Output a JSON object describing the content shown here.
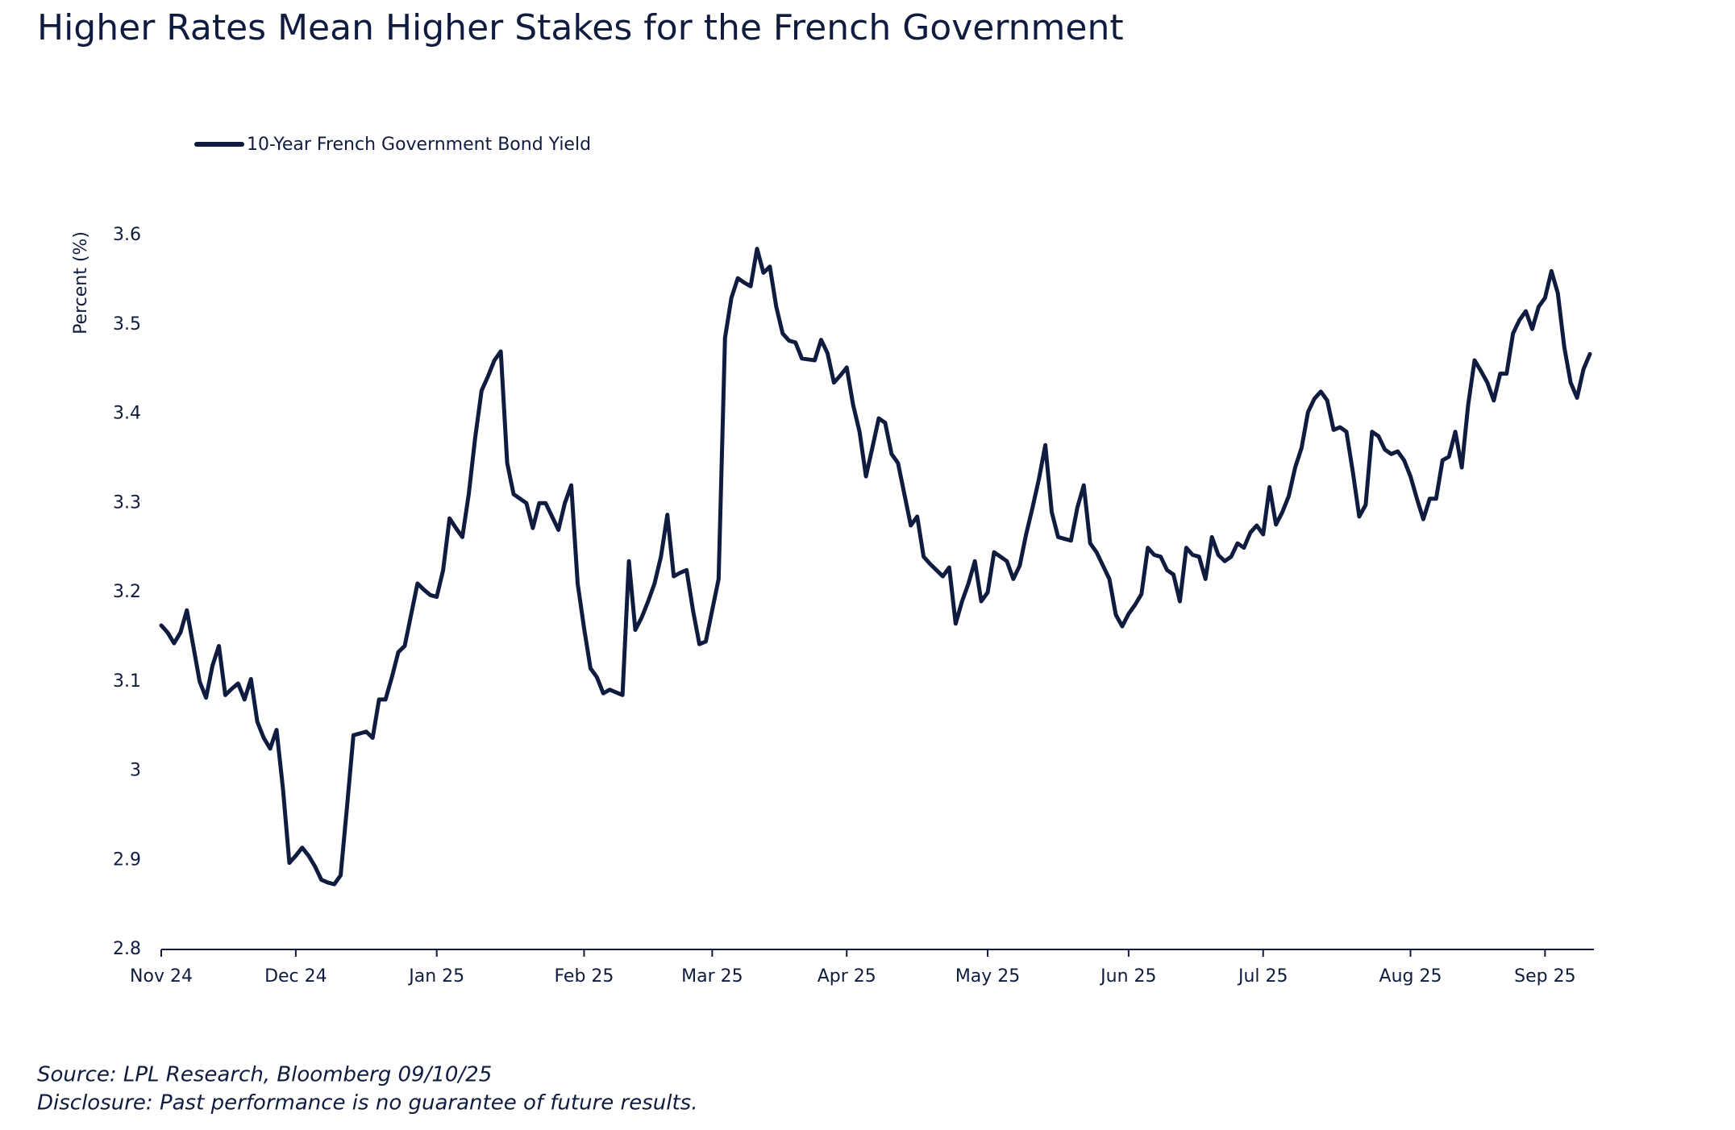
{
  "chart_data": {
    "type": "line",
    "title": "Higher Rates Mean Higher Stakes for the French Government",
    "y_label": "Percent (%)",
    "footnotes": [
      "Source: LPL Research, Bloomberg 09/10/25",
      "Disclosure: Past performance is no guarantee of future results."
    ],
    "ylim": [
      2.8,
      3.6
    ],
    "yticks": [
      2.8,
      2.9,
      3,
      3.1,
      3.2,
      3.3,
      3.4,
      3.5,
      3.6
    ],
    "grid": false,
    "legend": "top-left",
    "categories": [
      "Nov 24",
      null,
      null,
      null,
      null,
      null,
      null,
      null,
      null,
      null,
      null,
      null,
      null,
      null,
      null,
      null,
      null,
      null,
      null,
      null,
      null,
      "Dec 24",
      null,
      null,
      null,
      null,
      null,
      null,
      null,
      null,
      null,
      null,
      null,
      null,
      null,
      null,
      null,
      null,
      null,
      null,
      null,
      null,
      null,
      "Jan 25",
      null,
      null,
      null,
      null,
      null,
      null,
      null,
      null,
      null,
      null,
      null,
      null,
      null,
      null,
      null,
      null,
      null,
      null,
      null,
      null,
      null,
      null,
      "Feb 25",
      null,
      null,
      null,
      null,
      null,
      null,
      null,
      null,
      null,
      null,
      null,
      null,
      null,
      null,
      null,
      null,
      null,
      null,
      null,
      "Mar 25",
      null,
      null,
      null,
      null,
      null,
      null,
      null,
      null,
      null,
      null,
      null,
      null,
      null,
      null,
      null,
      null,
      null,
      null,
      null,
      null,
      "Apr 25",
      null,
      null,
      null,
      null,
      null,
      null,
      null,
      null,
      null,
      null,
      null,
      null,
      null,
      null,
      null,
      null,
      null,
      null,
      null,
      null,
      null,
      "May 25",
      null,
      null,
      null,
      null,
      null,
      null,
      null,
      null,
      null,
      null,
      null,
      null,
      null,
      null,
      null,
      null,
      null,
      null,
      null,
      null,
      null,
      "Jun 25",
      null,
      null,
      null,
      null,
      null,
      null,
      null,
      null,
      null,
      null,
      null,
      null,
      null,
      null,
      null,
      null,
      null,
      null,
      null,
      null,
      "Jul 25",
      null,
      null,
      null,
      null,
      null,
      null,
      null,
      null,
      null,
      null,
      null,
      null,
      null,
      null,
      null,
      null,
      null,
      null,
      null,
      null,
      null,
      null,
      "Aug 25",
      null,
      null,
      null,
      null,
      null,
      null,
      null,
      null,
      null,
      null,
      null,
      null,
      null,
      null,
      null,
      null,
      null,
      null,
      null,
      null,
      "Sep 25",
      null,
      null,
      null,
      null,
      null,
      null,
      null
    ],
    "series": [
      {
        "name": "10-Year French Government Bond Yield",
        "color": "#0f1c3f",
        "values": [
          3.163,
          3.155,
          3.143,
          3.155,
          3.18,
          3.14,
          3.1,
          3.082,
          3.118,
          3.14,
          3.085,
          3.092,
          3.098,
          3.08,
          3.103,
          3.055,
          3.037,
          3.025,
          3.046,
          2.98,
          2.897,
          2.905,
          2.914,
          2.905,
          2.893,
          2.878,
          2.875,
          2.873,
          2.883,
          2.96,
          3.04,
          3.042,
          3.044,
          3.037,
          3.08,
          3.08,
          3.105,
          3.133,
          3.14,
          3.175,
          3.21,
          3.203,
          3.197,
          3.195,
          3.225,
          3.283,
          3.272,
          3.262,
          3.31,
          3.373,
          3.426,
          3.442,
          3.46,
          3.47,
          3.345,
          3.31,
          3.305,
          3.3,
          3.272,
          3.3,
          3.3,
          3.285,
          3.27,
          3.3,
          3.32,
          3.21,
          3.16,
          3.115,
          3.105,
          3.087,
          3.091,
          3.088,
          3.085,
          3.235,
          3.158,
          3.172,
          3.19,
          3.21,
          3.24,
          3.287,
          3.218,
          3.222,
          3.225,
          3.18,
          3.142,
          3.145,
          3.18,
          3.215,
          3.485,
          3.53,
          3.552,
          3.547,
          3.543,
          3.585,
          3.558,
          3.565,
          3.52,
          3.49,
          3.482,
          3.48,
          3.462,
          3.461,
          3.46,
          3.483,
          3.468,
          3.435,
          3.443,
          3.452,
          3.41,
          3.38,
          3.33,
          3.362,
          3.395,
          3.39,
          3.355,
          3.345,
          3.31,
          3.275,
          3.285,
          3.24,
          3.232,
          3.225,
          3.218,
          3.228,
          3.165,
          3.19,
          3.21,
          3.235,
          3.19,
          3.2,
          3.245,
          3.24,
          3.235,
          3.215,
          3.23,
          3.265,
          3.295,
          3.327,
          3.365,
          3.29,
          3.262,
          3.26,
          3.258,
          3.295,
          3.32,
          3.255,
          3.245,
          3.23,
          3.215,
          3.175,
          3.162,
          3.176,
          3.186,
          3.198,
          3.25,
          3.242,
          3.24,
          3.225,
          3.22,
          3.19,
          3.25,
          3.242,
          3.24,
          3.215,
          3.262,
          3.242,
          3.235,
          3.24,
          3.255,
          3.25,
          3.267,
          3.275,
          3.265,
          3.318,
          3.276,
          3.29,
          3.308,
          3.34,
          3.362,
          3.402,
          3.417,
          3.425,
          3.415,
          3.382,
          3.385,
          3.38,
          3.335,
          3.285,
          3.298,
          3.38,
          3.375,
          3.36,
          3.355,
          3.358,
          3.348,
          3.33,
          3.305,
          3.282,
          3.305,
          3.305,
          3.348,
          3.352,
          3.38,
          3.34,
          3.41,
          3.46,
          3.448,
          3.435,
          3.415,
          3.445,
          3.445,
          3.49,
          3.505,
          3.515,
          3.495,
          3.52,
          3.53,
          3.56,
          3.535,
          3.475,
          3.435,
          3.418,
          3.45,
          3.467
        ]
      }
    ]
  }
}
